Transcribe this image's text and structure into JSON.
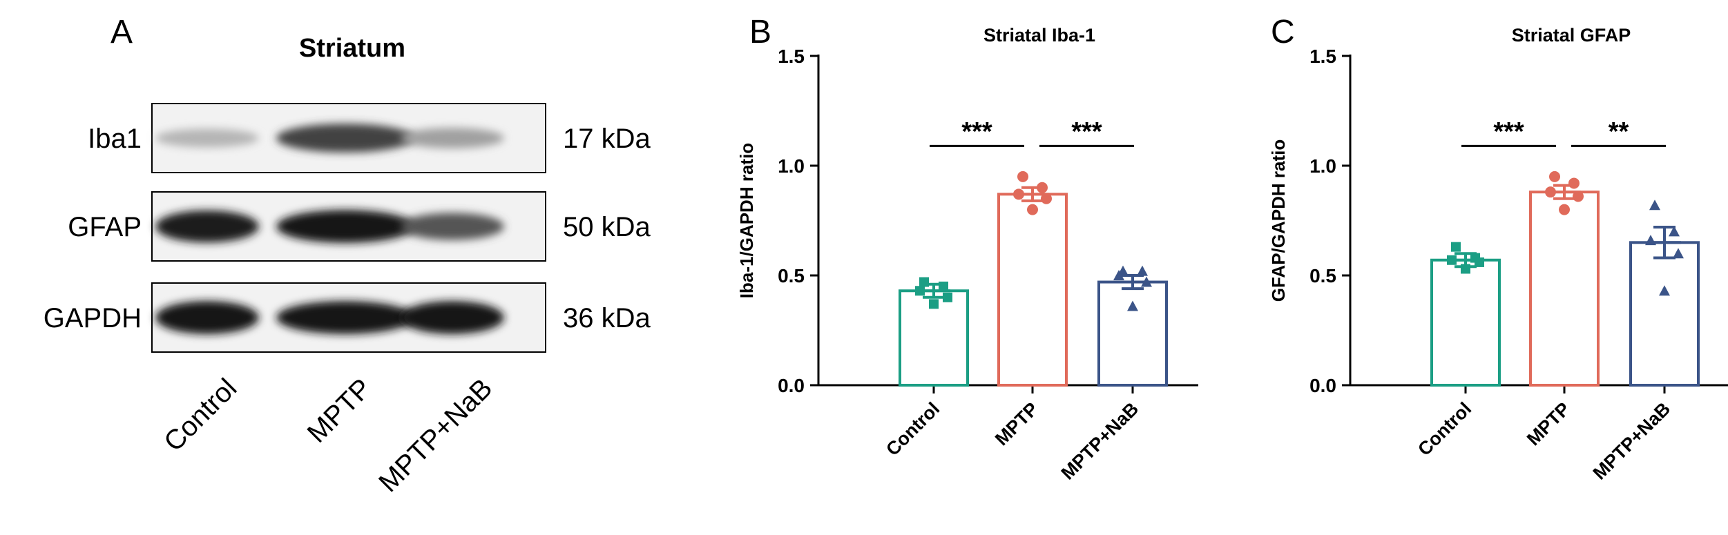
{
  "panel_a": {
    "letter": "A",
    "title": "Striatum",
    "rows": [
      {
        "protein": "Iba1",
        "size": "17 kDa",
        "intensities": [
          0.25,
          0.78,
          0.35
        ]
      },
      {
        "protein": "GFAP",
        "size": "50 kDa",
        "intensities": [
          0.95,
          1.0,
          0.7
        ]
      },
      {
        "protein": "GAPDH",
        "size": "36 kDa",
        "intensities": [
          1.0,
          1.0,
          1.0
        ]
      }
    ],
    "lanes": [
      "Control",
      "MPTP",
      "MPTP+NaB"
    ]
  },
  "colors": {
    "control": "#1b9e84",
    "mptp": "#e06a5a",
    "nab": "#3b5488",
    "axis": "#000000"
  },
  "chart_data": [
    {
      "panel": "B",
      "type": "bar",
      "title": "Striatal Iba-1",
      "xlabel": "",
      "ylabel": "Iba-1/GAPDH ratio",
      "ylim": [
        0,
        1.5
      ],
      "yticks": [
        "0.0",
        "0.5",
        "1.0",
        "1.5"
      ],
      "categories": [
        "Control",
        "MPTP",
        "MPTP+NaB"
      ],
      "values": [
        0.43,
        0.87,
        0.47
      ],
      "errors": [
        0.03,
        0.03,
        0.03
      ],
      "points": [
        [
          0.47,
          0.45,
          0.43,
          0.4,
          0.37
        ],
        [
          0.95,
          0.9,
          0.87,
          0.85,
          0.8
        ],
        [
          0.52,
          0.52,
          0.5,
          0.47,
          0.36
        ]
      ],
      "markers": [
        "square",
        "circle",
        "triangle"
      ],
      "significance": [
        {
          "from": 0,
          "to": 1,
          "label": "***"
        },
        {
          "from": 1,
          "to": 2,
          "label": "***"
        }
      ]
    },
    {
      "panel": "C",
      "type": "bar",
      "title": "Striatal GFAP",
      "xlabel": "",
      "ylabel": "GFAP/GAPDH ratio",
      "ylim": [
        0,
        1.5
      ],
      "yticks": [
        "0.0",
        "0.5",
        "1.0",
        "1.5"
      ],
      "categories": [
        "Control",
        "MPTP",
        "MPTP+NaB"
      ],
      "values": [
        0.57,
        0.88,
        0.65
      ],
      "errors": [
        0.03,
        0.03,
        0.07
      ],
      "points": [
        [
          0.63,
          0.58,
          0.57,
          0.56,
          0.53
        ],
        [
          0.95,
          0.92,
          0.88,
          0.86,
          0.8
        ],
        [
          0.82,
          0.7,
          0.66,
          0.6,
          0.43
        ]
      ],
      "markers": [
        "square",
        "circle",
        "triangle"
      ],
      "significance": [
        {
          "from": 0,
          "to": 1,
          "label": "***"
        },
        {
          "from": 1,
          "to": 2,
          "label": "**"
        }
      ]
    }
  ]
}
